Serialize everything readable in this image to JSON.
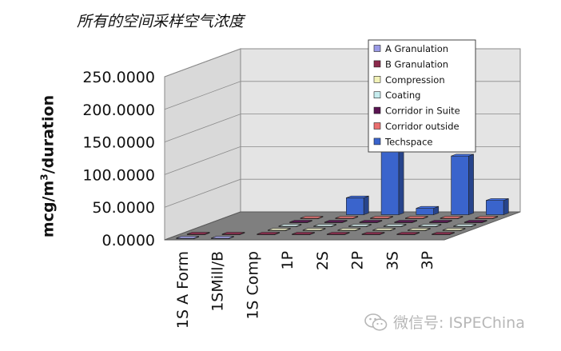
{
  "chart_data": {
    "type": "bar",
    "title": "所有的空间采样空气浓度",
    "ylabel": {
      "pre": "mcg/m",
      "sup": "3",
      "post": "/duration"
    },
    "xlabel": "",
    "ylim": [
      0,
      250
    ],
    "yticks": [
      "0.0000",
      "50.0000",
      "100.0000",
      "150.0000",
      "200.0000",
      "250.0000"
    ],
    "categories": [
      "1S A Form",
      "1SMill/B",
      "1S Comp",
      "1P",
      "2S",
      "2P",
      "3S",
      "3P"
    ],
    "legend_position": "top-right",
    "series": [
      {
        "name": "A Granulation",
        "color": "#9a9ae6",
        "values": [
          1,
          1,
          0,
          0,
          0,
          0,
          0,
          0
        ]
      },
      {
        "name": "B Granulation",
        "color": "#8c2a4c",
        "values": [
          1,
          1,
          1,
          1,
          1,
          1,
          1,
          1
        ]
      },
      {
        "name": "Compression",
        "color": "#f2f2b8",
        "values": [
          0,
          0,
          1,
          1,
          1,
          1,
          1,
          1
        ]
      },
      {
        "name": "Coating",
        "color": "#c6ecee",
        "values": [
          0,
          0,
          1,
          1,
          1,
          1,
          1,
          1
        ]
      },
      {
        "name": "Corridor in Suite",
        "color": "#5a1452",
        "values": [
          0,
          0,
          1,
          1,
          1,
          1,
          1,
          1
        ]
      },
      {
        "name": "Corridor outside",
        "color": "#ea6f6f",
        "values": [
          0,
          0,
          1,
          1,
          1,
          1,
          1,
          1
        ]
      },
      {
        "name": "Techspace",
        "color": "#3a64cc",
        "values": [
          0,
          0,
          0,
          26,
          206,
          10,
          90,
          22
        ]
      }
    ]
  },
  "watermark": {
    "text": "微信号: ISPEChina",
    "icon": "wechat-icon"
  }
}
